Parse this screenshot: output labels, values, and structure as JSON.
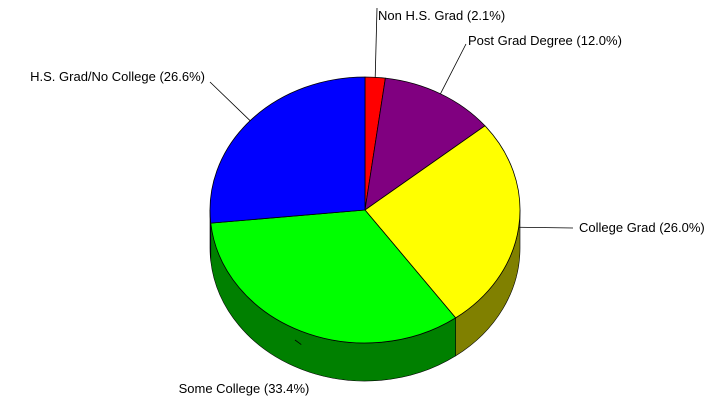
{
  "chart_data": {
    "type": "pie",
    "title": "",
    "slices": [
      {
        "label": "Non H.S. Grad (2.1%)",
        "value": 2.1,
        "color": "#ff0000",
        "side_color": "#8b0000"
      },
      {
        "label": "Post Grad Degree (12.0%)",
        "value": 12.0,
        "color": "#800080",
        "side_color": "#400040"
      },
      {
        "label": "College Grad (26.0%)",
        "value": 26.0,
        "color": "#ffff00",
        "side_color": "#808000"
      },
      {
        "label": "Some College (33.4%)",
        "value": 33.4,
        "color": "#00ff00",
        "side_color": "#008000"
      },
      {
        "label": "H.S. Grad/No College (26.6%)",
        "value": 26.6,
        "color": "#0000ff",
        "side_color": "#000080"
      }
    ],
    "start": "12 o'clock",
    "direction": "clockwise",
    "style": "3d-tilted",
    "label_placement": "outside-with-leader-lines"
  }
}
